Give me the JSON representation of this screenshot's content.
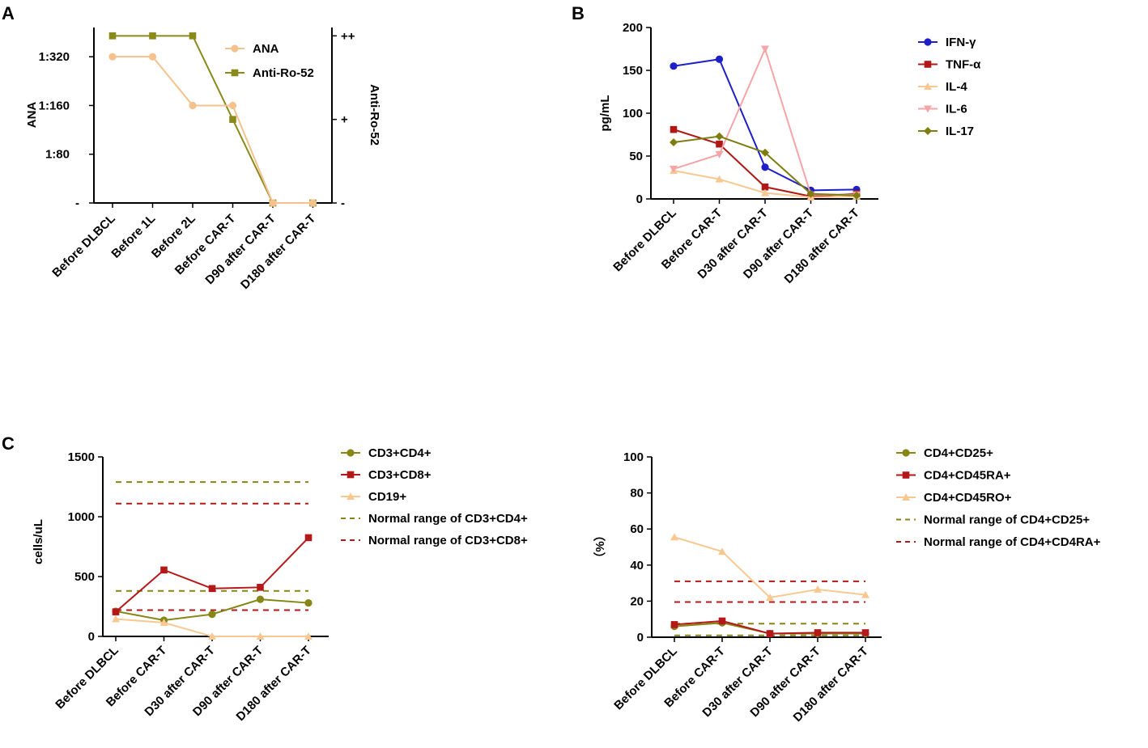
{
  "panel_labels": [
    "A",
    "B",
    "C"
  ],
  "chart_data": [
    {
      "id": "A",
      "type": "line",
      "categories": [
        "Before DLBCL",
        "Before 1L",
        "Before 2L",
        "Before CAR-T",
        "D90 after CAR-T",
        "D180 after CAR-T"
      ],
      "ylabel": "ANA",
      "y2label": "Anti-Ro-52",
      "yticks": [
        "-",
        "1:80",
        "1:160",
        "1:320"
      ],
      "y2ticks": [
        "-",
        "+",
        "++"
      ],
      "ylim": [
        0,
        3.6
      ],
      "y2lim": [
        0,
        2.1
      ],
      "legend": {
        "position": "top-right"
      },
      "series": [
        {
          "name": "ANA",
          "axis": "left",
          "marker": "circle",
          "color": "#f5c18c",
          "values": [
            3,
            3,
            2,
            2,
            0,
            0
          ]
        },
        {
          "name": "Anti-Ro-52",
          "axis": "right",
          "marker": "square",
          "color": "#8a8a1a",
          "values": [
            2,
            2,
            2,
            1,
            0,
            0
          ]
        }
      ]
    },
    {
      "id": "B",
      "type": "line",
      "categories": [
        "Before DLBCL",
        "Before CAR-T",
        "D30 after CAR-T",
        "D90 after CAR-T",
        "D180 after CAR-T"
      ],
      "ylabel": "pg/mL",
      "ylim": [
        0,
        200
      ],
      "yticks": [
        0,
        50,
        100,
        150,
        200
      ],
      "legend": {
        "position": "top-right"
      },
      "series": [
        {
          "name": "IFN-γ",
          "marker": "circle",
          "color": "#1f1fc8",
          "values": [
            155,
            163,
            37,
            10,
            11
          ]
        },
        {
          "name": "TNF-α",
          "marker": "square",
          "color": "#b01818",
          "values": [
            81,
            64,
            14,
            3,
            6
          ]
        },
        {
          "name": "IL-4",
          "marker": "triangle-up",
          "color": "#f8c890",
          "values": [
            33,
            23,
            7,
            2,
            3
          ]
        },
        {
          "name": "IL-6",
          "marker": "triangle-down",
          "color": "#f5a5a8",
          "values": [
            35,
            52,
            175,
            5,
            5
          ]
        },
        {
          "name": "IL-17",
          "marker": "diamond",
          "color": "#7e7e10",
          "values": [
            66,
            73,
            54,
            6,
            4
          ]
        }
      ]
    },
    {
      "id": "C1",
      "type": "line",
      "categories": [
        "Before DLBCL",
        "Before CAR-T",
        "D30 after CAR-T",
        "D90 after CAR-T",
        "D180 after CAR-T"
      ],
      "ylabel": "cells/uL",
      "ylim": [
        0,
        1500
      ],
      "yticks": [
        0,
        500,
        1000,
        1500
      ],
      "legend": {
        "position": "top-right"
      },
      "series": [
        {
          "name": "CD3+CD4+",
          "marker": "circle",
          "color": "#868616",
          "values": [
            210,
            135,
            185,
            310,
            280
          ]
        },
        {
          "name": "CD3+CD8+",
          "marker": "square",
          "color": "#b41818",
          "values": [
            205,
            555,
            400,
            410,
            825
          ]
        },
        {
          "name": "CD19+",
          "marker": "triangle-up",
          "color": "#f8c890",
          "values": [
            145,
            115,
            0,
            0,
            0
          ]
        }
      ],
      "reference_lines": [
        {
          "name": "Normal range of CD3+CD4+",
          "color": "#868616",
          "values": [
            380,
            1290
          ]
        },
        {
          "name": "Normal range of CD3+CD8+",
          "color": "#b41818",
          "values": [
            220,
            1110
          ]
        }
      ]
    },
    {
      "id": "C2",
      "type": "line",
      "categories": [
        "Before DLBCL",
        "Before CAR-T",
        "D30 after CAR-T",
        "D90 after CAR-T",
        "D180 after CAR-T"
      ],
      "ylabel": "（%）",
      "ylim": [
        0,
        100
      ],
      "yticks": [
        0,
        20,
        40,
        60,
        80,
        100
      ],
      "legend": {
        "position": "top-right"
      },
      "series": [
        {
          "name": "CD4+CD25+",
          "marker": "circle",
          "color": "#868616",
          "values": [
            6,
            8,
            2,
            2,
            2
          ]
        },
        {
          "name": "CD4+CD45RA+",
          "marker": "square",
          "color": "#b41818",
          "values": [
            7,
            9,
            2,
            2.5,
            2.5
          ]
        },
        {
          "name": "CD4+CD45RO+",
          "marker": "triangle-up",
          "color": "#f8c890",
          "values": [
            55.5,
            47.5,
            22,
            26.5,
            23.5
          ]
        }
      ],
      "reference_lines": [
        {
          "name": "Normal range of CD4+CD25+",
          "color": "#868616",
          "values": [
            1,
            7.5
          ]
        },
        {
          "name": "Normal range of CD4+CD4RA+",
          "color": "#b41818",
          "values": [
            19.5,
            31
          ]
        }
      ]
    }
  ]
}
